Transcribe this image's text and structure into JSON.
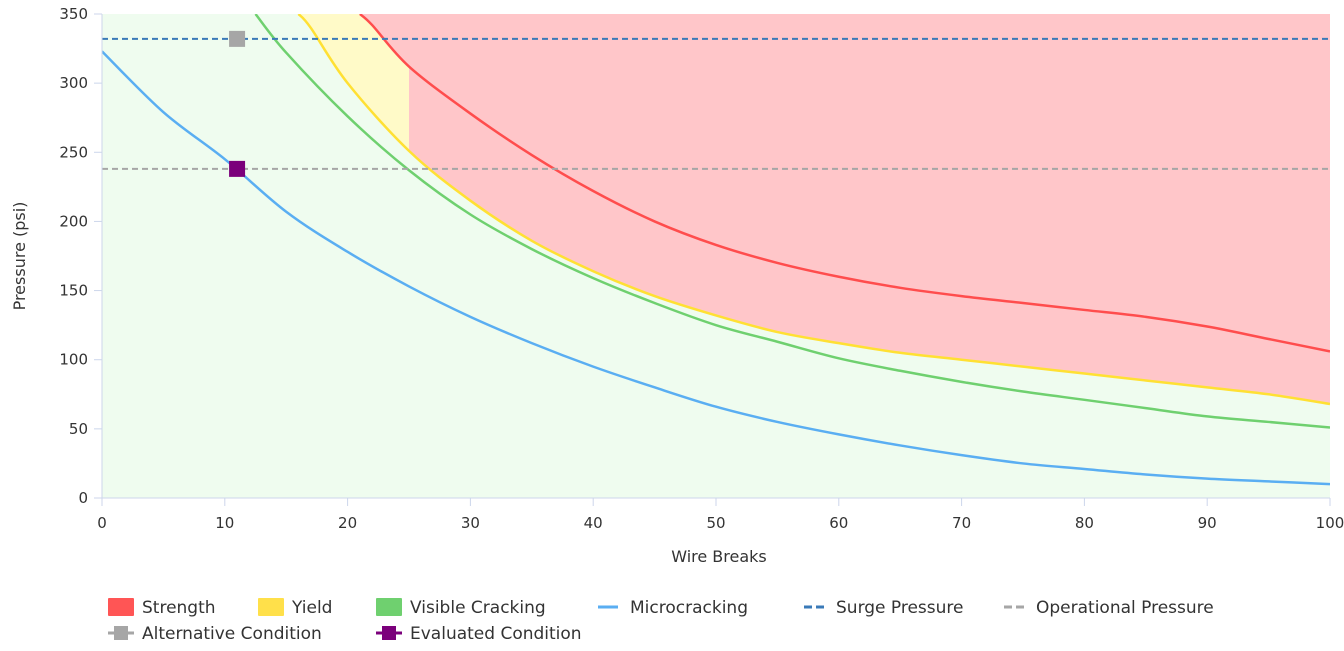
{
  "chart_data": {
    "type": "area",
    "title": "",
    "xlabel": "Wire Breaks",
    "ylabel": "Pressure (psi)",
    "xlim": [
      0,
      100
    ],
    "ylim": [
      0,
      350
    ],
    "x_ticks": [
      "0",
      "10",
      "20",
      "30",
      "40",
      "50",
      "60",
      "70",
      "80",
      "90",
      "100"
    ],
    "y_ticks": [
      "0",
      "50",
      "100",
      "150",
      "200",
      "250",
      "300",
      "350"
    ],
    "grid": false,
    "legend_position": "bottom",
    "region_colors": {
      "safe_fill": "#effcef",
      "strength_fill": "#ffc6c9",
      "yield_fill": "#fffac8"
    },
    "series": [
      {
        "name": "Strength",
        "kind": "curve",
        "color": "#ff4d4d",
        "legend_color": "#ff5555",
        "x": [
          21,
          22,
          25,
          30,
          35,
          40,
          45,
          50,
          55,
          60,
          65,
          70,
          75,
          80,
          85,
          90,
          95,
          100
        ],
        "y": [
          350,
          342,
          312,
          278,
          248,
          222,
          200,
          183,
          170,
          160,
          152,
          146,
          141,
          136,
          131,
          124,
          115,
          106
        ]
      },
      {
        "name": "Yield",
        "kind": "curve",
        "color": "#ffe033",
        "legend_color": "#ffe04a",
        "x": [
          16,
          17,
          20,
          25,
          30,
          35,
          40,
          45,
          50,
          55,
          60,
          65,
          70,
          75,
          80,
          85,
          90,
          95,
          100
        ],
        "y": [
          350,
          340,
          300,
          251,
          215,
          186,
          164,
          146,
          132,
          120,
          112,
          105,
          100,
          95,
          90,
          85,
          80,
          75,
          68
        ]
      },
      {
        "name": "Visible Cracking",
        "kind": "curve",
        "color": "#6fd06f",
        "legend_color": "#6fd06f",
        "x": [
          12.5,
          15,
          20,
          25,
          30,
          35,
          40,
          45,
          50,
          55,
          60,
          65,
          70,
          75,
          80,
          85,
          90,
          95,
          100
        ],
        "y": [
          350,
          322,
          276,
          237,
          205,
          180,
          159,
          141,
          125,
          113,
          101,
          92,
          84,
          77,
          71,
          65,
          59,
          55,
          51
        ]
      },
      {
        "name": "Microcracking",
        "kind": "line",
        "color": "#5aaef2",
        "x": [
          0,
          5,
          10,
          15,
          20,
          25,
          30,
          35,
          40,
          45,
          50,
          55,
          60,
          65,
          70,
          75,
          80,
          85,
          90,
          95,
          100
        ],
        "y": [
          323,
          279,
          245,
          207,
          178,
          153,
          131,
          112,
          95,
          80,
          66,
          55,
          46,
          38,
          31,
          25,
          21,
          17,
          14,
          12,
          10
        ]
      },
      {
        "name": "Surge Pressure",
        "kind": "hline",
        "color": "#3a7ab8",
        "y": 332
      },
      {
        "name": "Operational Pressure",
        "kind": "hline",
        "color": "#a6a6a6",
        "y": 238
      },
      {
        "name": "Alternative Condition",
        "kind": "point",
        "color": "#a6a6a6",
        "x": 11,
        "y": 332
      },
      {
        "name": "Evaluated Condition",
        "kind": "point",
        "color": "#7b007b",
        "x": 11,
        "y": 238
      }
    ]
  },
  "legend": {
    "items": [
      {
        "label": "Strength",
        "symbol": "swatch",
        "color": "#ff5555"
      },
      {
        "label": "Yield",
        "symbol": "swatch",
        "color": "#ffe04a"
      },
      {
        "label": "Visible Cracking",
        "symbol": "swatch",
        "color": "#6fd06f"
      },
      {
        "label": "Microcracking",
        "symbol": "line",
        "color": "#5aaef2"
      },
      {
        "label": "Surge Pressure",
        "symbol": "dash",
        "color": "#3a7ab8"
      },
      {
        "label": "Operational Pressure",
        "symbol": "dash",
        "color": "#a6a6a6"
      },
      {
        "label": "Alternative Condition",
        "symbol": "marker",
        "color": "#a6a6a6"
      },
      {
        "label": "Evaluated Condition",
        "symbol": "marker",
        "color": "#7b007b"
      }
    ]
  }
}
